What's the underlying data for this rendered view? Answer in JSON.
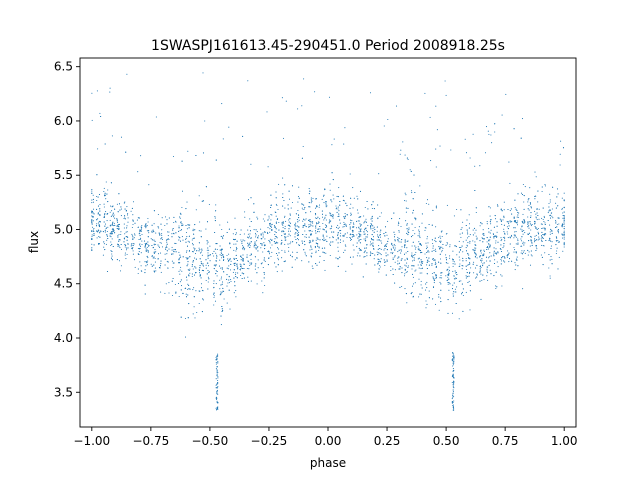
{
  "chart_data": {
    "type": "scatter",
    "title": "1SWASPJ161613.45-290451.0 Period 2008918.25s",
    "xlabel": "phase",
    "ylabel": "flux",
    "xlim": [
      -1.05,
      1.05
    ],
    "ylim": [
      3.18,
      6.58
    ],
    "xticks": [
      -1.0,
      -0.75,
      -0.5,
      -0.25,
      0.0,
      0.25,
      0.5,
      0.75,
      1.0
    ],
    "xtick_labels": [
      "−1.00",
      "−0.75",
      "−0.50",
      "−0.25",
      "0.00",
      "0.25",
      "0.50",
      "0.75",
      "1.00"
    ],
    "yticks": [
      3.5,
      4.0,
      4.5,
      5.0,
      5.5,
      6.0,
      6.5
    ],
    "ytick_labels": [
      "3.5",
      "4.0",
      "4.5",
      "5.0",
      "5.5",
      "6.0",
      "6.5"
    ],
    "grid": false,
    "legend": "none",
    "marker_color": "#1f77b4",
    "series": [
      {
        "phase": [
          -1.0,
          -0.95,
          -0.9,
          -0.85,
          -0.8,
          -0.75,
          -0.7,
          -0.65,
          -0.6,
          -0.55,
          -0.5,
          -0.47,
          -0.45,
          -0.4,
          -0.35,
          -0.3,
          -0.25,
          -0.2,
          -0.15,
          -0.1,
          -0.05,
          0.0,
          0.05,
          0.1,
          0.15,
          0.2,
          0.25,
          0.3,
          0.35,
          0.4,
          0.45,
          0.5,
          0.53,
          0.55,
          0.6,
          0.65,
          0.7,
          0.75,
          0.8,
          0.85,
          0.9,
          0.95,
          1.0
        ],
        "flux_center": [
          5.05,
          5.05,
          5.0,
          4.95,
          4.9,
          4.82,
          4.8,
          4.85,
          4.75,
          4.7,
          4.68,
          4.6,
          4.65,
          4.72,
          4.8,
          4.85,
          4.92,
          5.0,
          5.02,
          5.0,
          5.0,
          5.05,
          5.05,
          5.0,
          4.95,
          4.9,
          4.82,
          4.8,
          4.85,
          4.75,
          4.7,
          4.68,
          4.6,
          4.65,
          4.72,
          4.8,
          4.85,
          4.92,
          5.0,
          5.02,
          5.0,
          5.0,
          5.05
        ],
        "flux_spread": [
          0.2,
          0.22,
          0.22,
          0.2,
          0.2,
          0.18,
          0.2,
          0.3,
          0.3,
          0.3,
          0.28,
          0.3,
          0.28,
          0.25,
          0.22,
          0.22,
          0.22,
          0.25,
          0.22,
          0.2,
          0.22,
          0.22,
          0.22,
          0.2,
          0.2,
          0.2,
          0.18,
          0.2,
          0.3,
          0.3,
          0.3,
          0.28,
          0.3,
          0.28,
          0.25,
          0.22,
          0.22,
          0.22,
          0.25,
          0.22,
          0.2,
          0.22,
          0.2
        ]
      }
    ]
  }
}
